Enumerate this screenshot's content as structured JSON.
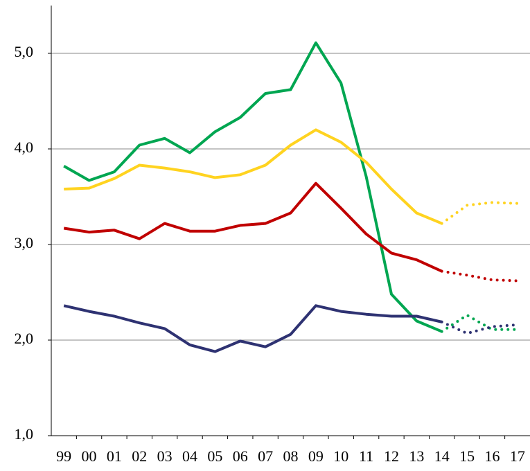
{
  "chart_data": {
    "type": "line",
    "categories": [
      "99",
      "00",
      "01",
      "02",
      "03",
      "04",
      "05",
      "06",
      "07",
      "08",
      "09",
      "10",
      "11",
      "12",
      "13",
      "14",
      "15",
      "16",
      "17"
    ],
    "series": [
      {
        "color": "#00a651",
        "style": "solid",
        "values": [
          3.82,
          3.67,
          3.76,
          4.04,
          4.11,
          3.96,
          4.18,
          4.33,
          4.58,
          4.62,
          5.11,
          4.69,
          3.71,
          2.48,
          2.2,
          2.09,
          null,
          null,
          null
        ]
      },
      {
        "color": "#00a651",
        "style": "dotted",
        "values": [
          null,
          null,
          null,
          null,
          null,
          null,
          null,
          null,
          null,
          null,
          null,
          null,
          null,
          null,
          null,
          2.09,
          2.26,
          2.11,
          2.11
        ]
      },
      {
        "color": "#ffd320",
        "style": "solid",
        "values": [
          3.58,
          3.59,
          3.69,
          3.83,
          3.8,
          3.76,
          3.7,
          3.73,
          3.83,
          4.04,
          4.2,
          4.07,
          3.86,
          3.58,
          3.33,
          3.22,
          null,
          null,
          null
        ]
      },
      {
        "color": "#ffd320",
        "style": "dotted",
        "values": [
          null,
          null,
          null,
          null,
          null,
          null,
          null,
          null,
          null,
          null,
          null,
          null,
          null,
          null,
          null,
          3.22,
          3.41,
          3.44,
          3.43
        ]
      },
      {
        "color": "#c00000",
        "style": "solid",
        "values": [
          3.17,
          3.13,
          3.15,
          3.06,
          3.22,
          3.14,
          3.14,
          3.2,
          3.22,
          3.33,
          3.64,
          3.38,
          3.11,
          2.91,
          2.84,
          2.72,
          null,
          null,
          null
        ]
      },
      {
        "color": "#c00000",
        "style": "dotted",
        "values": [
          null,
          null,
          null,
          null,
          null,
          null,
          null,
          null,
          null,
          null,
          null,
          null,
          null,
          null,
          null,
          2.72,
          2.68,
          2.63,
          2.62
        ]
      },
      {
        "color": "#2e3272",
        "style": "solid",
        "values": [
          2.36,
          2.3,
          2.25,
          2.18,
          2.12,
          1.95,
          1.88,
          1.99,
          1.93,
          2.06,
          2.36,
          2.3,
          2.27,
          2.25,
          2.25,
          2.19,
          null,
          null,
          null
        ]
      },
      {
        "color": "#2e3272",
        "style": "dotted",
        "values": [
          null,
          null,
          null,
          null,
          null,
          null,
          null,
          null,
          null,
          null,
          null,
          null,
          null,
          null,
          null,
          2.19,
          2.07,
          2.14,
          2.16
        ]
      }
    ],
    "ylim": [
      1,
      5.5
    ],
    "yticks": [
      {
        "value": 1,
        "label": "1,0"
      },
      {
        "value": 2,
        "label": "2,0"
      },
      {
        "value": 3,
        "label": "3,0"
      },
      {
        "value": 4,
        "label": "4,0"
      },
      {
        "value": 5,
        "label": "5,0"
      }
    ],
    "grid": true
  }
}
